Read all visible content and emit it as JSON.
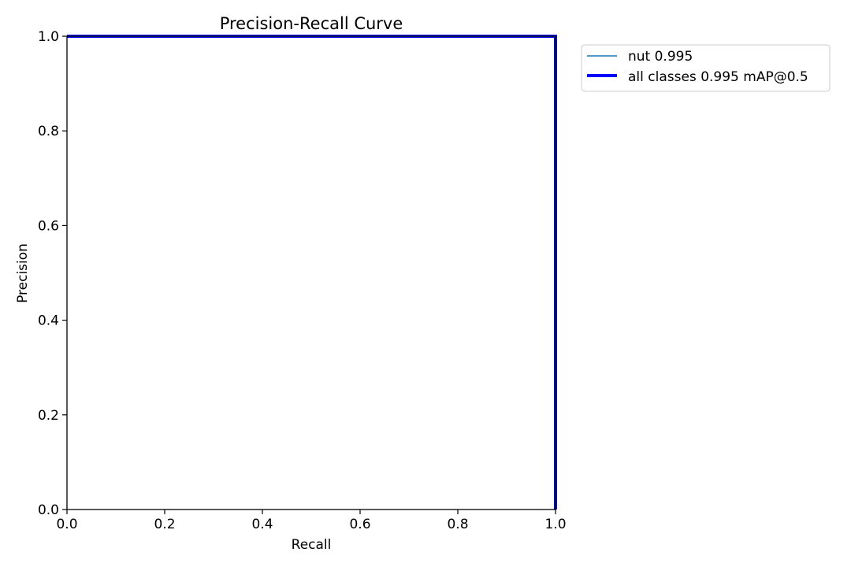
{
  "chart_data": {
    "type": "line",
    "title": "Precision-Recall Curve",
    "xlabel": "Recall",
    "ylabel": "Precision",
    "xlim": [
      0,
      1
    ],
    "ylim": [
      0,
      1
    ],
    "grid": false,
    "legend_position": "outside top-right",
    "x_ticks": [
      "0.0",
      "0.2",
      "0.4",
      "0.6",
      "0.8",
      "1.0"
    ],
    "y_ticks": [
      "0.0",
      "0.2",
      "0.4",
      "0.6",
      "0.8",
      "1.0"
    ],
    "series": [
      {
        "name": "nut 0.995",
        "color": "#1f77b4",
        "style": "thin",
        "x": [
          0.0,
          0.995,
          1.0,
          1.0
        ],
        "y": [
          1.0,
          1.0,
          1.0,
          0.0
        ]
      },
      {
        "name": "all classes 0.995 mAP@0.5",
        "color": "#0000ff",
        "style": "thick",
        "x": [
          0.0,
          0.995,
          1.0,
          1.0
        ],
        "y": [
          1.0,
          1.0,
          1.0,
          0.0
        ]
      }
    ]
  }
}
